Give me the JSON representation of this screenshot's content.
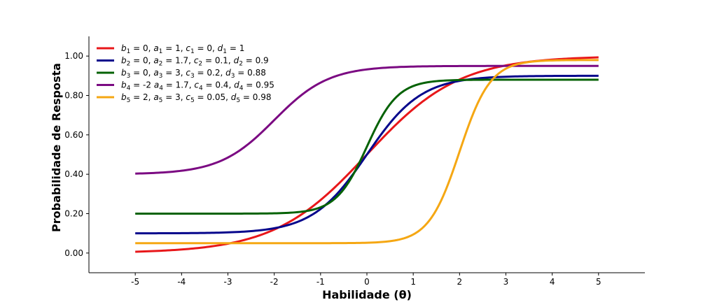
{
  "chart_data": {
    "type": "line",
    "xlabel": "Habilidade (θ)",
    "ylabel": "Probabilidade de Resposta",
    "xlim": [
      -6,
      6
    ],
    "ylim": [
      -0.1,
      1.1
    ],
    "xticks": [
      -5,
      -4,
      -3,
      -2,
      -1,
      0,
      1,
      2,
      3,
      4,
      5
    ],
    "xtick_labels": [
      "-5",
      "-4",
      "-3",
      "-2",
      "-1",
      "0",
      "1",
      "2",
      "3",
      "4",
      "5"
    ],
    "yticks": [
      0,
      0.2,
      0.4,
      0.6,
      0.8,
      1.0
    ],
    "ytick_labels": [
      "0.00",
      "0.20",
      "0.40",
      "0.60",
      "0.80",
      "1.00"
    ],
    "legend_position": "top-left",
    "grid": false,
    "x_range": [
      -5,
      5
    ],
    "model": "c + (d - c) / (1 + exp(-a (theta - b)))",
    "series": [
      {
        "name": "b1 = 0, a1 = 1, c1 = 0, d1 = 1",
        "b": 0,
        "a": 1,
        "c": 0,
        "d": 1,
        "color": "#e8171a",
        "legend_parts": [
          [
            "b",
            "1",
            " = 0, "
          ],
          [
            "a",
            "1",
            " = 1, "
          ],
          [
            "c",
            "1",
            " = 0, "
          ],
          [
            "d",
            "1",
            " = 1"
          ]
        ]
      },
      {
        "name": "b2 = 0, a2 = 1.7, c2 = 0.1, d2 = 0.9",
        "b": 0,
        "a": 1.7,
        "c": 0.1,
        "d": 0.9,
        "color": "#06068c",
        "legend_parts": [
          [
            "b",
            "2",
            " = 0, "
          ],
          [
            "a",
            "2",
            " = 1.7, "
          ],
          [
            "c",
            "2",
            " = 0.1, "
          ],
          [
            "d",
            "2",
            " = 0.9"
          ]
        ]
      },
      {
        "name": "b3 = 0, a3 = 3, c3 = 0.2, d3 = 0.88",
        "b": 0,
        "a": 3,
        "c": 0.2,
        "d": 0.88,
        "color": "#056205",
        "legend_parts": [
          [
            "b",
            "3",
            " = 0, "
          ],
          [
            "a",
            "3",
            " = 3, "
          ],
          [
            "c",
            "3",
            " = 0.2, "
          ],
          [
            "d",
            "3",
            " = 0.88"
          ]
        ]
      },
      {
        "name": "b4 = -2 a4 = 1.7, c4 = 0.4, d4 = 0.95",
        "b": -2,
        "a": 1.7,
        "c": 0.4,
        "d": 0.95,
        "color": "#7b0a82",
        "legend_parts": [
          [
            "b",
            "4",
            " = -2 "
          ],
          [
            "a",
            "4",
            " = 1.7, "
          ],
          [
            "c",
            "4",
            " = 0.4, "
          ],
          [
            "d",
            "4",
            " = 0.95"
          ]
        ]
      },
      {
        "name": "b5 = 2, a5 = 3, c5 = 0.05, d5 = 0.98",
        "b": 2,
        "a": 3,
        "c": 0.05,
        "d": 0.98,
        "color": "#f5a713",
        "legend_parts": [
          [
            "b",
            "5",
            " = 2, "
          ],
          [
            "a",
            "5",
            " = 3, "
          ],
          [
            "c",
            "5",
            " = 0.05, "
          ],
          [
            "d",
            "5",
            " = 0.98"
          ]
        ]
      }
    ]
  }
}
